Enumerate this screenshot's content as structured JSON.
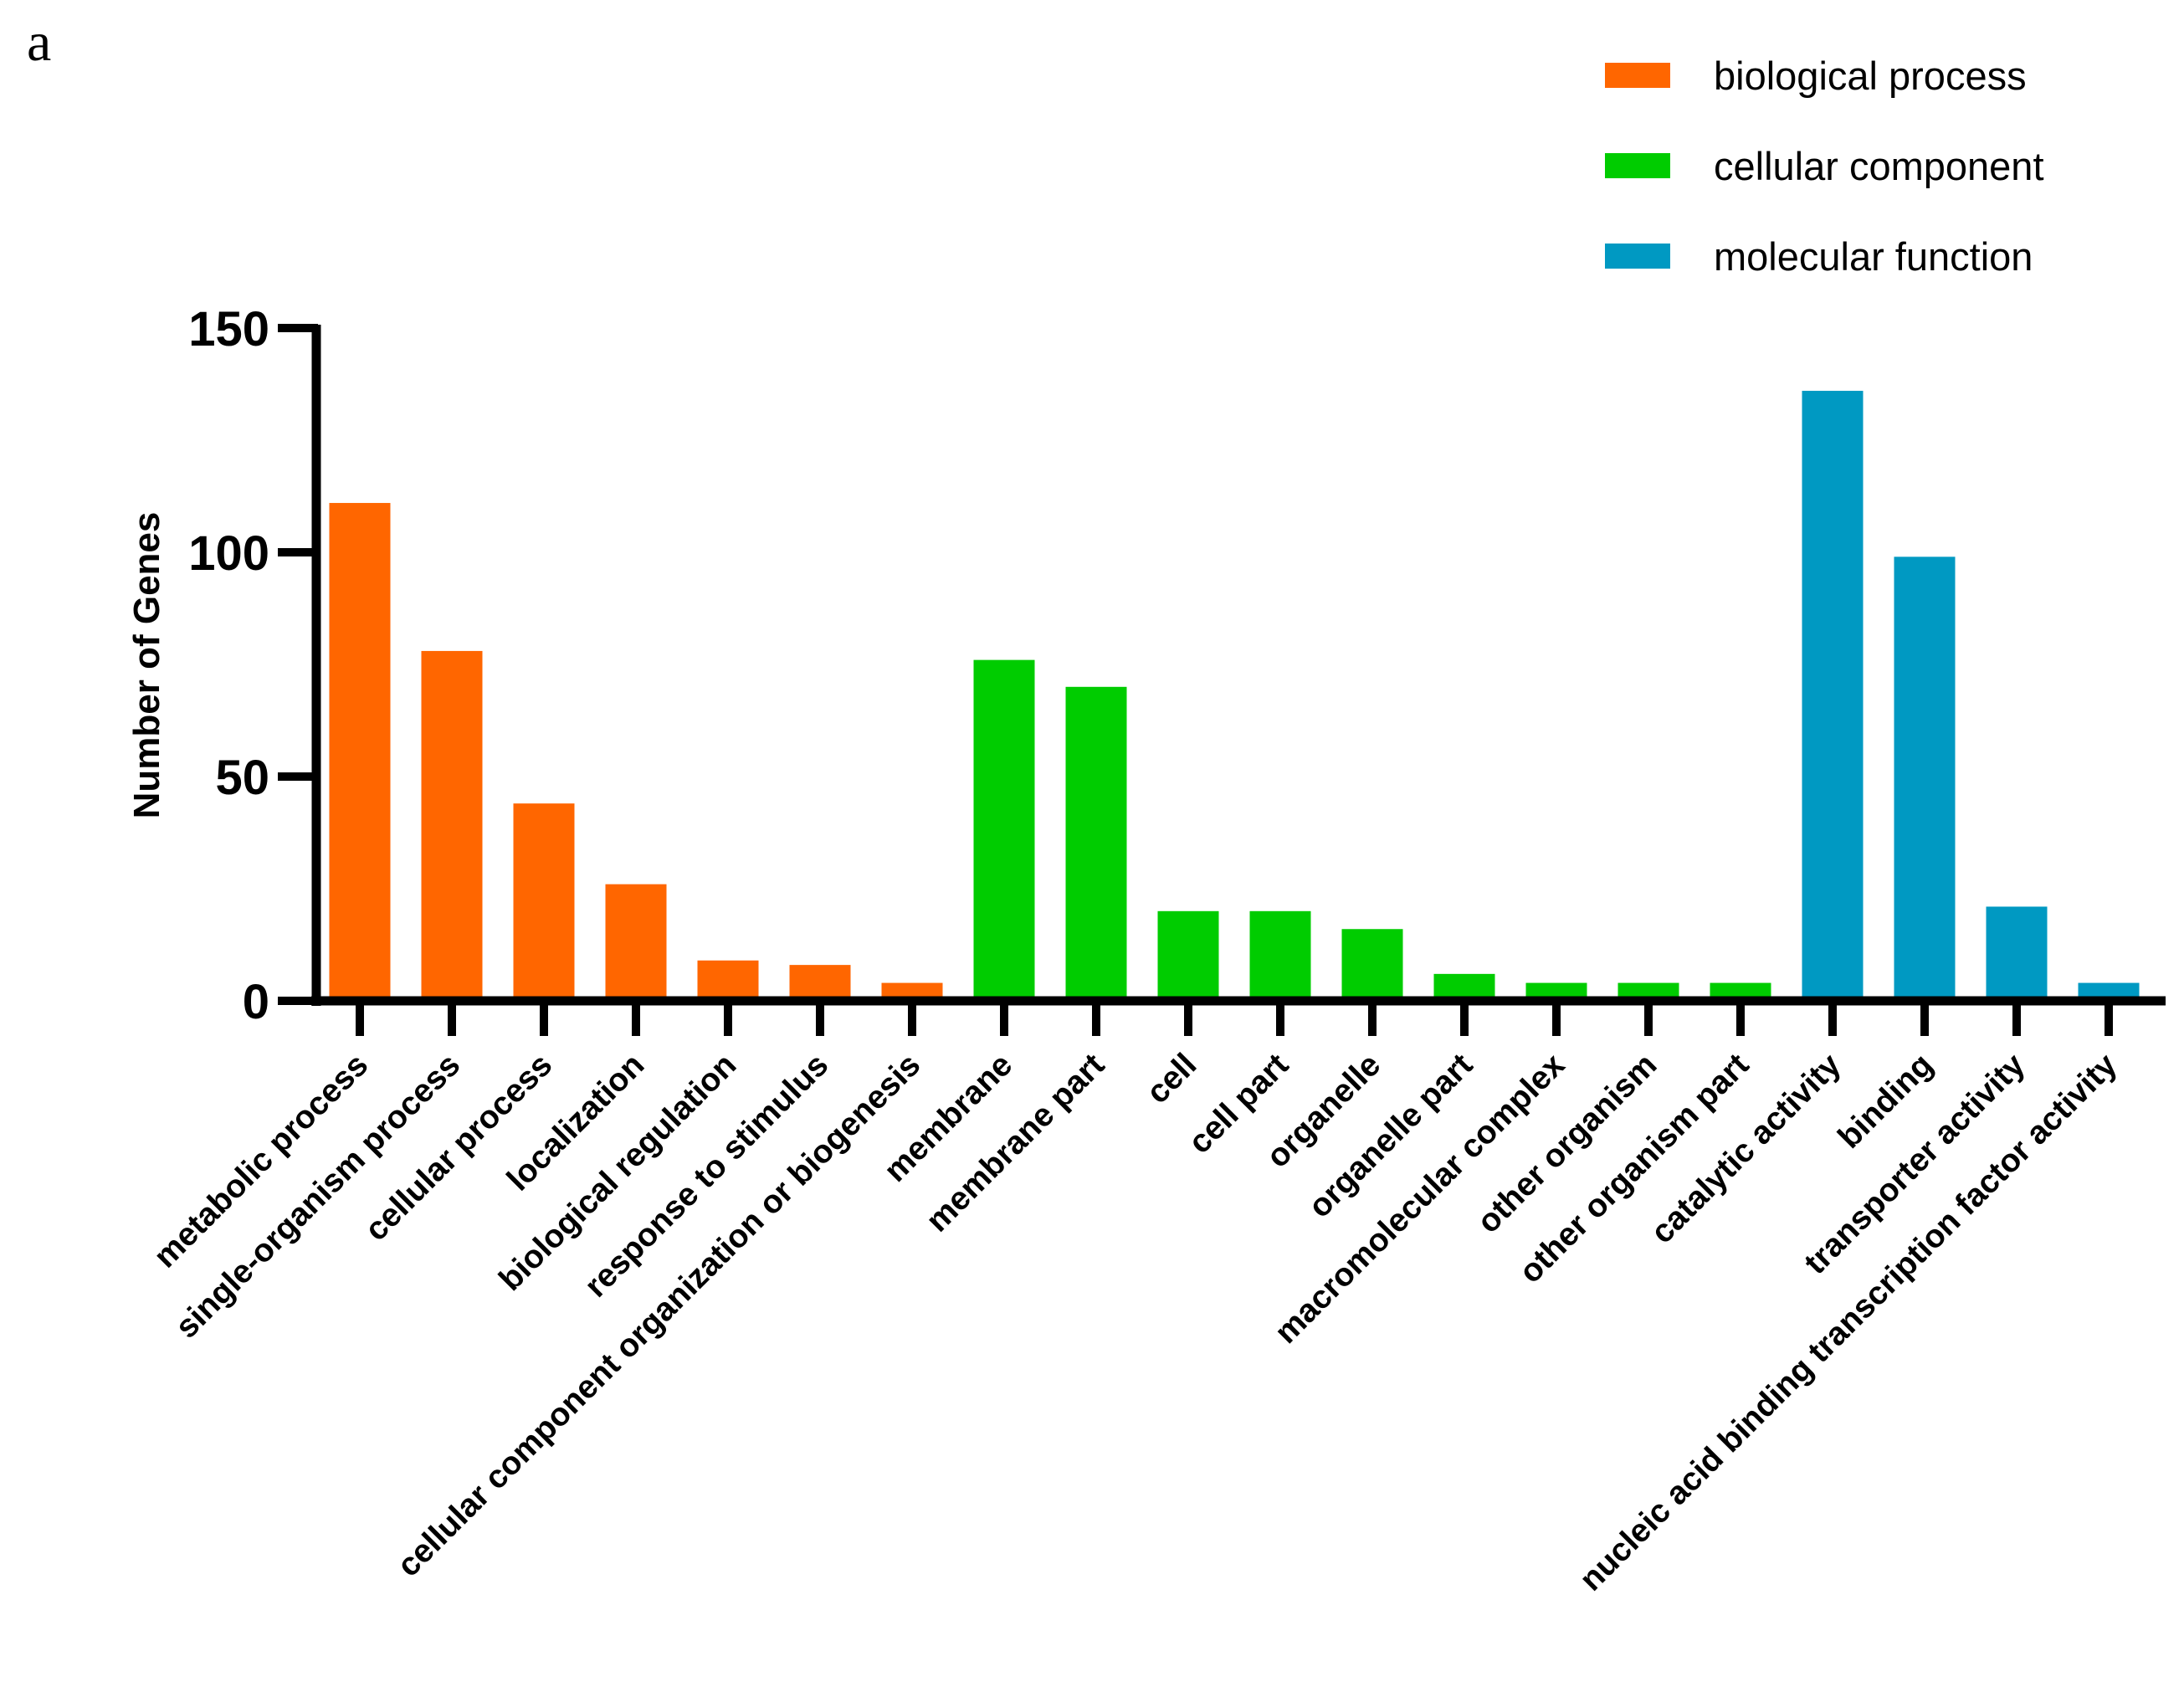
{
  "panel_label": "a",
  "chart_data": {
    "type": "bar",
    "title": "",
    "xlabel": "",
    "ylabel": "Number of Genes",
    "ylim": [
      0,
      150
    ],
    "yticks": [
      0,
      50,
      100,
      150
    ],
    "legend": {
      "placement": "top-right",
      "entries": [
        {
          "key": "bp",
          "label": "biological process",
          "color": "#FF6600"
        },
        {
          "key": "cc",
          "label": "cellular component",
          "color": "#00CC00"
        },
        {
          "key": "mf",
          "label": "molecular function",
          "color": "#0099C2"
        }
      ]
    },
    "categories": [
      "metabolic process",
      "single-organism process",
      "cellular process",
      "localization",
      "biological regulation",
      "response to stimulus",
      "cellular component organization or biogenesis",
      "membrane",
      "membrane part",
      "cell",
      "cell part",
      "organelle",
      "organelle part",
      "macromolecular complex",
      "other organism",
      "other organism part",
      "catalytic activity",
      "binding",
      "transporter activity",
      "nucleic acid binding transcription factor activity"
    ],
    "values": [
      111,
      78,
      44,
      26,
      9,
      8,
      4,
      76,
      70,
      20,
      20,
      16,
      6,
      4,
      4,
      4,
      136,
      99,
      21,
      4
    ],
    "groups": [
      "bp",
      "bp",
      "bp",
      "bp",
      "bp",
      "bp",
      "bp",
      "cc",
      "cc",
      "cc",
      "cc",
      "cc",
      "cc",
      "cc",
      "cc",
      "cc",
      "mf",
      "mf",
      "mf",
      "mf"
    ]
  }
}
